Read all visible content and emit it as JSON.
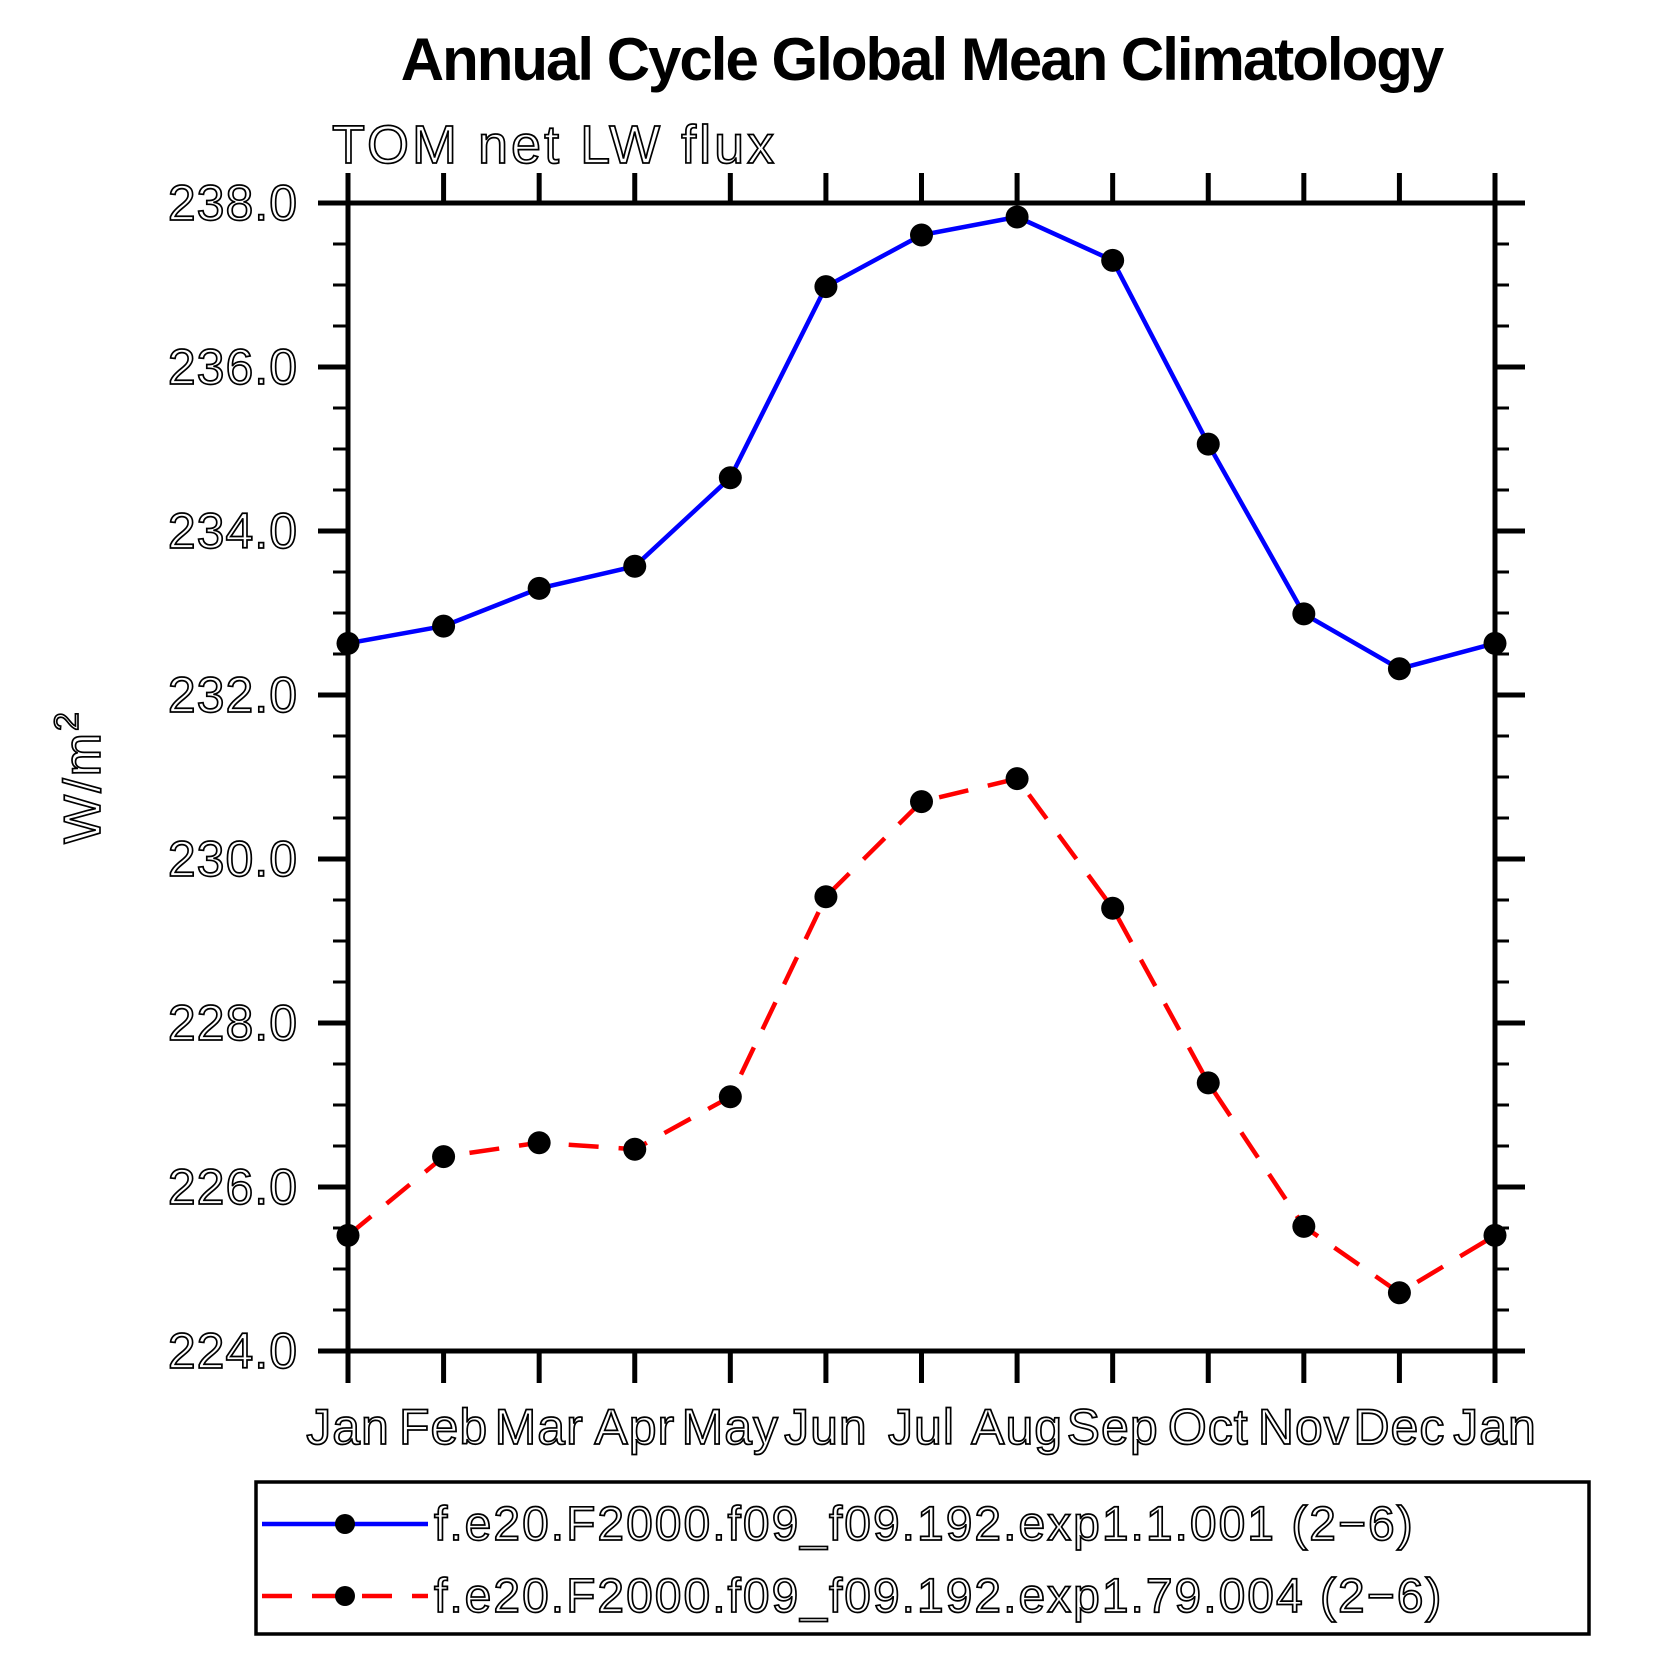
{
  "page": {
    "background": "#ffffff"
  },
  "header": {
    "title": "Annual Cycle Global Mean Climatology",
    "subtitle": "TOM net LW flux"
  },
  "chart_data": {
    "type": "line",
    "title": "Annual Cycle Global Mean Climatology",
    "subtitle": "TOM net LW flux",
    "xlabel": "",
    "ylabel": "W/m²",
    "categories": [
      "Jan",
      "Feb",
      "Mar",
      "Apr",
      "May",
      "Jun",
      "Jul",
      "Aug",
      "Sep",
      "Oct",
      "Nov",
      "Dec",
      "Jan"
    ],
    "series": [
      {
        "name": "f.e20.F2000.f09_f09.192.exp1.1.001 (2−6)",
        "color": "#0000ff",
        "line_style": "solid",
        "marker": "filled-circle",
        "marker_color": "#000000",
        "values": [
          232.63,
          232.84,
          233.3,
          233.57,
          234.65,
          236.98,
          237.61,
          237.83,
          237.3,
          235.06,
          232.99,
          232.32,
          232.63
        ]
      },
      {
        "name": "f.e20.F2000.f09_f09.192.exp1.79.004 (2−6)",
        "color": "#ff0000",
        "line_style": "dashed",
        "marker": "filled-circle",
        "marker_color": "#000000",
        "values": [
          225.41,
          226.37,
          226.54,
          226.46,
          227.1,
          229.54,
          230.7,
          230.98,
          229.4,
          227.27,
          225.52,
          224.71,
          225.41
        ]
      }
    ],
    "ylim": [
      224.0,
      238.0
    ],
    "y_major_step": 2.0,
    "y_minor_step": 0.5,
    "y_tick_labels": [
      "238.0",
      "236.0",
      "234.0",
      "232.0",
      "230.0",
      "228.0",
      "226.0",
      "224.0"
    ],
    "grid": false,
    "axis_color": "#000000",
    "legend_position": "bottom"
  }
}
